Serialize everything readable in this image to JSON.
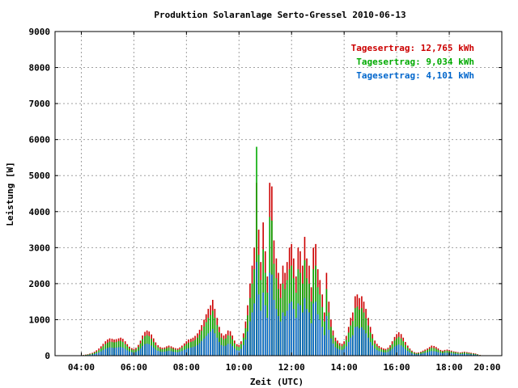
{
  "chart_data": {
    "type": "bar",
    "title": "Produktion Solaranlage Serto-Gressel 2010-06-13",
    "xlabel": "Zeit (UTC)",
    "ylabel": "Leistung [W]",
    "x_unit": "hours",
    "xlim": [
      3.0,
      20.0
    ],
    "ylim": [
      0,
      9000
    ],
    "x_ticks": [
      {
        "value": 4,
        "label": "04:00"
      },
      {
        "value": 6,
        "label": "06:00"
      },
      {
        "value": 8,
        "label": "08:00"
      },
      {
        "value": 10,
        "label": "10:00"
      },
      {
        "value": 12,
        "label": "12:00"
      },
      {
        "value": 14,
        "label": "14:00"
      },
      {
        "value": 16,
        "label": "16:00"
      },
      {
        "value": 18,
        "label": "18:00"
      },
      {
        "value": 20,
        "label": "20:00"
      }
    ],
    "y_ticks": [
      0,
      1000,
      2000,
      3000,
      4000,
      5000,
      6000,
      7000,
      8000,
      9000
    ],
    "grid": true,
    "legend_position": "top-right",
    "series": [
      {
        "color": "#cc0000",
        "legend": "Tagesertrag: 12,765 kWh"
      },
      {
        "color": "#00aa00",
        "legend": "Tagesertrag: 9,034 kWh"
      },
      {
        "color": "#0066cc",
        "legend": "Tagesertrag: 4,101 kWh"
      }
    ],
    "stack_order": [
      0,
      1,
      2
    ],
    "bar_width_hours": 0.0417,
    "x": [
      4.0,
      4.08,
      4.17,
      4.25,
      4.33,
      4.42,
      4.5,
      4.58,
      4.67,
      4.75,
      4.83,
      4.92,
      5.0,
      5.08,
      5.17,
      5.25,
      5.33,
      5.42,
      5.5,
      5.58,
      5.67,
      5.75,
      5.83,
      5.92,
      6.0,
      6.08,
      6.17,
      6.25,
      6.33,
      6.42,
      6.5,
      6.58,
      6.67,
      6.75,
      6.83,
      6.92,
      7.0,
      7.08,
      7.17,
      7.25,
      7.33,
      7.42,
      7.5,
      7.58,
      7.67,
      7.75,
      7.83,
      7.92,
      8.0,
      8.08,
      8.17,
      8.25,
      8.33,
      8.42,
      8.5,
      8.58,
      8.67,
      8.75,
      8.83,
      8.92,
      9.0,
      9.08,
      9.17,
      9.25,
      9.33,
      9.42,
      9.5,
      9.58,
      9.67,
      9.75,
      9.83,
      9.92,
      10.0,
      10.08,
      10.17,
      10.25,
      10.33,
      10.42,
      10.5,
      10.58,
      10.67,
      10.75,
      10.83,
      10.92,
      11.0,
      11.08,
      11.17,
      11.25,
      11.33,
      11.42,
      11.5,
      11.58,
      11.67,
      11.75,
      11.83,
      11.92,
      12.0,
      12.08,
      12.17,
      12.25,
      12.33,
      12.42,
      12.5,
      12.58,
      12.67,
      12.75,
      12.83,
      12.92,
      13.0,
      13.08,
      13.17,
      13.25,
      13.33,
      13.42,
      13.5,
      13.58,
      13.67,
      13.75,
      13.83,
      13.92,
      14.0,
      14.08,
      14.17,
      14.25,
      14.33,
      14.42,
      14.5,
      14.58,
      14.67,
      14.75,
      14.83,
      14.92,
      15.0,
      15.08,
      15.17,
      15.25,
      15.33,
      15.42,
      15.5,
      15.58,
      15.67,
      15.75,
      15.83,
      15.92,
      16.0,
      16.08,
      16.17,
      16.25,
      16.33,
      16.42,
      16.5,
      16.58,
      16.67,
      16.75,
      16.83,
      16.92,
      17.0,
      17.08,
      17.17,
      17.25,
      17.33,
      17.42,
      17.5,
      17.58,
      17.67,
      17.75,
      17.83,
      17.92,
      18.0,
      18.08,
      18.17,
      18.25,
      18.33,
      18.42,
      18.5,
      18.58,
      18.67,
      18.75,
      18.83,
      18.92,
      19.0,
      19.08,
      19.17
    ],
    "values": [
      [
        10,
        20,
        30,
        40,
        60,
        80,
        110,
        150,
        200,
        260,
        330,
        400,
        450,
        480,
        470,
        450,
        460,
        480,
        500,
        470,
        400,
        320,
        250,
        210,
        190,
        220,
        300,
        420,
        560,
        660,
        700,
        670,
        590,
        480,
        370,
        290,
        240,
        220,
        230,
        260,
        280,
        260,
        230,
        210,
        200,
        230,
        280,
        340,
        400,
        450,
        470,
        500,
        550,
        620,
        720,
        850,
        1000,
        1150,
        1300,
        1400,
        1550,
        1300,
        1050,
        800,
        620,
        560,
        600,
        700,
        680,
        560,
        420,
        320,
        300,
        400,
        620,
        950,
        1400,
        2000,
        2500,
        3000,
        4800,
        3500,
        2600,
        3700,
        2900,
        2200,
        4800,
        4700,
        3200,
        2700,
        2300,
        2000,
        2500,
        2300,
        2600,
        3000,
        3100,
        2700,
        2200,
        3000,
        2900,
        2500,
        3300,
        2700,
        2500,
        1900,
        3000,
        3100,
        2400,
        2100,
        1700,
        1200,
        2300,
        1500,
        1000,
        700,
        500,
        420,
        350,
        330,
        400,
        550,
        800,
        1050,
        1200,
        1650,
        1700,
        1600,
        1650,
        1500,
        1300,
        1050,
        800,
        600,
        420,
        330,
        270,
        230,
        200,
        190,
        220,
        290,
        400,
        520,
        600,
        650,
        600,
        500,
        380,
        280,
        200,
        140,
        100,
        80,
        90,
        110,
        140,
        170,
        200,
        240,
        280,
        270,
        240,
        200,
        160,
        140,
        160,
        170,
        160,
        140,
        120,
        110,
        100,
        90,
        100,
        110,
        100,
        90,
        80,
        70,
        60,
        40,
        20
      ],
      [
        8,
        15,
        22,
        30,
        45,
        60,
        80,
        110,
        150,
        200,
        260,
        320,
        360,
        390,
        380,
        370,
        380,
        400,
        410,
        380,
        320,
        260,
        200,
        170,
        150,
        180,
        240,
        340,
        460,
        540,
        570,
        540,
        470,
        380,
        290,
        230,
        190,
        180,
        190,
        210,
        230,
        210,
        190,
        170,
        160,
        180,
        220,
        270,
        320,
        360,
        380,
        400,
        440,
        500,
        580,
        690,
        810,
        930,
        1050,
        1130,
        1250,
        1050,
        850,
        650,
        500,
        450,
        480,
        560,
        550,
        450,
        340,
        260,
        240,
        320,
        500,
        760,
        1120,
        1600,
        2000,
        2400,
        5800,
        2800,
        2100,
        2950,
        2300,
        1750,
        3850,
        3750,
        2550,
        2150,
        1850,
        1600,
        2000,
        1850,
        2100,
        2400,
        2500,
        2150,
        1750,
        2400,
        2300,
        2000,
        2650,
        2150,
        2000,
        1500,
        2400,
        2500,
        1900,
        1700,
        1350,
        950,
        1850,
        1200,
        800,
        560,
        400,
        330,
        280,
        260,
        320,
        440,
        640,
        840,
        960,
        1320,
        1360,
        1280,
        1320,
        1200,
        1040,
        840,
        640,
        480,
        330,
        260,
        210,
        180,
        160,
        150,
        180,
        230,
        320,
        420,
        480,
        520,
        480,
        400,
        300,
        220,
        160,
        110,
        80,
        60,
        70,
        90,
        110,
        130,
        160,
        190,
        220,
        210,
        190,
        160,
        130,
        110,
        130,
        140,
        130,
        110,
        100,
        90,
        80,
        70,
        80,
        90,
        80,
        70,
        60,
        55,
        45,
        30,
        15
      ],
      [
        5,
        9,
        13,
        17,
        25,
        35,
        45,
        65,
        90,
        120,
        155,
        190,
        215,
        230,
        225,
        215,
        225,
        235,
        240,
        225,
        190,
        150,
        115,
        100,
        90,
        105,
        140,
        200,
        270,
        320,
        335,
        320,
        280,
        225,
        170,
        135,
        115,
        105,
        110,
        125,
        135,
        125,
        110,
        100,
        95,
        110,
        130,
        160,
        190,
        210,
        225,
        240,
        260,
        295,
        345,
        410,
        480,
        550,
        620,
        670,
        740,
        620,
        500,
        380,
        295,
        265,
        285,
        330,
        325,
        265,
        200,
        150,
        140,
        190,
        295,
        450,
        670,
        950,
        1200,
        1450,
        2600,
        1700,
        1250,
        1750,
        1400,
        1050,
        2300,
        2250,
        1550,
        1300,
        1100,
        950,
        1200,
        1100,
        1250,
        1450,
        1500,
        1300,
        1050,
        1450,
        1400,
        1200,
        1600,
        1300,
        1200,
        900,
        1450,
        1500,
        1150,
        1000,
        800,
        570,
        1100,
        720,
        480,
        335,
        240,
        200,
        170,
        155,
        190,
        260,
        380,
        500,
        570,
        790,
        810,
        760,
        790,
        720,
        620,
        500,
        380,
        285,
        200,
        155,
        125,
        110,
        95,
        90,
        105,
        140,
        190,
        250,
        285,
        310,
        285,
        240,
        180,
        130,
        95,
        65,
        48,
        38,
        42,
        52,
        65,
        80,
        95,
        115,
        130,
        125,
        115,
        95,
        78,
        68,
        78,
        82,
        78,
        68,
        58,
        52,
        48,
        42,
        48,
        52,
        48,
        42,
        38,
        33,
        28,
        18,
        9
      ]
    ]
  }
}
